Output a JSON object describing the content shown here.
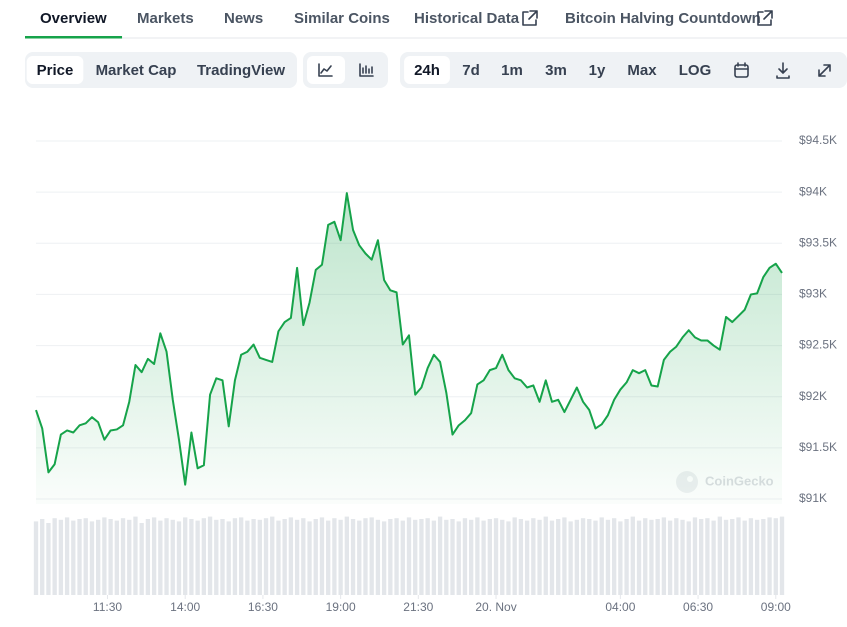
{
  "tabs": [
    "Overview",
    "Markets",
    "News",
    "Similar Coins",
    "Historical Data",
    "Bitcoin Halving Countdown"
  ],
  "active_tab": 0,
  "toolbar": {
    "views": [
      "Price",
      "Market Cap",
      "TradingView"
    ],
    "active_view": 0,
    "ranges": [
      "24h",
      "7d",
      "1m",
      "3m",
      "1y",
      "Max",
      "LOG"
    ],
    "active_range": 0
  },
  "chart_data": {
    "type": "area",
    "color": "#16a34a",
    "watermark": "CoinGecko",
    "x": [
      9.2,
      9.4,
      9.6,
      9.8,
      10,
      10.2,
      10.4,
      10.6,
      10.8,
      11,
      11.2,
      11.4,
      11.6,
      11.8,
      12,
      12.2,
      12.4,
      12.6,
      12.8,
      13,
      13.2,
      13.4,
      13.6,
      13.8,
      14,
      14.2,
      14.4,
      14.6,
      14.8,
      15,
      15.2,
      15.4,
      15.6,
      15.8,
      16,
      16.2,
      16.4,
      16.6,
      16.8,
      17,
      17.2,
      17.4,
      17.6,
      17.8,
      18,
      18.2,
      18.4,
      18.6,
      18.8,
      19,
      19.2,
      19.4,
      19.6,
      19.8,
      20,
      20.2,
      20.4,
      20.6,
      20.8,
      21,
      21.2,
      21.4,
      21.6,
      21.8,
      22,
      22.2,
      22.4,
      22.6,
      22.8,
      23,
      23.2,
      23.4,
      23.6,
      23.8,
      24,
      24.2,
      24.4,
      24.6,
      24.8,
      25,
      25.2,
      25.4,
      25.6,
      25.8,
      26,
      26.2,
      26.4,
      26.6,
      26.8,
      27,
      27.2,
      27.4,
      27.6,
      27.8,
      28,
      28.2,
      28.4,
      28.6,
      28.8,
      29,
      29.2,
      29.4,
      29.6,
      29.8,
      30,
      30.2,
      30.4,
      30.6,
      30.8,
      31,
      31.2,
      31.4,
      31.6,
      31.8,
      32,
      32.2,
      32.4,
      32.6,
      32.8,
      33,
      33.2
    ],
    "values": [
      91870,
      91690,
      91260,
      91340,
      91630,
      91670,
      91650,
      91720,
      91740,
      91800,
      91750,
      91580,
      91670,
      91680,
      91720,
      91950,
      92310,
      92240,
      92370,
      92320,
      92620,
      92440,
      91970,
      91580,
      91140,
      91650,
      91300,
      91330,
      92020,
      92180,
      92160,
      91710,
      92160,
      92410,
      92440,
      92510,
      92380,
      92360,
      92340,
      92640,
      92730,
      92770,
      93260,
      92700,
      92920,
      93240,
      93290,
      93680,
      93710,
      93530,
      93990,
      93630,
      93480,
      93400,
      93340,
      93530,
      93140,
      93040,
      93020,
      92510,
      92600,
      92020,
      92090,
      92280,
      92410,
      92340,
      92040,
      91630,
      91720,
      91770,
      91840,
      92120,
      92160,
      92260,
      92280,
      92410,
      92260,
      92180,
      92160,
      92090,
      92110,
      91950,
      92160,
      91950,
      91970,
      91850,
      91970,
      92090,
      91950,
      91870,
      91690,
      91730,
      91820,
      91970,
      92070,
      92140,
      92260,
      92230,
      92260,
      92110,
      92100,
      92360,
      92440,
      92490,
      92580,
      92650,
      92580,
      92550,
      92550,
      92500,
      92460,
      92780,
      92730,
      92790,
      92850,
      93000,
      93010,
      93170,
      93260,
      93300,
      93210
    ],
    "volume": [
      92,
      95,
      90,
      96,
      94,
      97,
      93,
      95,
      96,
      92,
      94,
      97,
      95,
      93,
      96,
      94,
      98,
      90,
      95,
      97,
      93,
      96,
      94,
      92,
      97,
      95,
      93,
      96,
      98,
      94,
      95,
      92,
      96,
      97,
      93,
      95,
      94,
      96,
      98,
      93,
      95,
      97,
      94,
      96,
      92,
      95,
      97,
      93,
      96,
      94,
      98,
      95,
      93,
      96,
      97,
      94,
      92,
      95,
      96,
      93,
      97,
      94,
      95,
      96,
      93,
      98,
      94,
      95,
      92,
      96,
      94,
      97,
      93,
      95,
      96,
      94,
      92,
      97,
      95,
      93,
      96,
      94,
      98,
      93,
      95,
      97,
      92,
      94,
      96,
      95,
      93,
      97,
      94,
      96,
      92,
      95,
      98,
      93,
      96,
      94,
      95,
      97,
      93,
      96,
      94,
      92,
      97,
      95,
      96,
      93,
      98,
      94,
      95,
      97,
      93,
      96,
      94,
      95,
      97,
      96,
      98
    ],
    "volume_ylim": [
      0,
      100
    ],
    "xlim": [
      9.2,
      33.2
    ],
    "xticks": [
      {
        "value": 11.5,
        "label": "11:30"
      },
      {
        "value": 14,
        "label": "14:00"
      },
      {
        "value": 16.5,
        "label": "16:30"
      },
      {
        "value": 19,
        "label": "19:00"
      },
      {
        "value": 21.5,
        "label": "21:30"
      },
      {
        "value": 24,
        "label": "20. Nov"
      },
      {
        "value": 28,
        "label": "04:00"
      },
      {
        "value": 30.5,
        "label": "06:30"
      },
      {
        "value": 33,
        "label": "09:00"
      }
    ],
    "ylim": [
      91000,
      94500
    ],
    "yticks": [
      {
        "value": 91000,
        "label": "$91K"
      },
      {
        "value": 91500,
        "label": "$91.5K"
      },
      {
        "value": 92000,
        "label": "$92K"
      },
      {
        "value": 92500,
        "label": "$92.5K"
      },
      {
        "value": 93000,
        "label": "$93K"
      },
      {
        "value": 93500,
        "label": "$93.5K"
      },
      {
        "value": 94000,
        "label": "$94K"
      },
      {
        "value": 94500,
        "label": "$94.5K"
      }
    ],
    "grid": true
  }
}
